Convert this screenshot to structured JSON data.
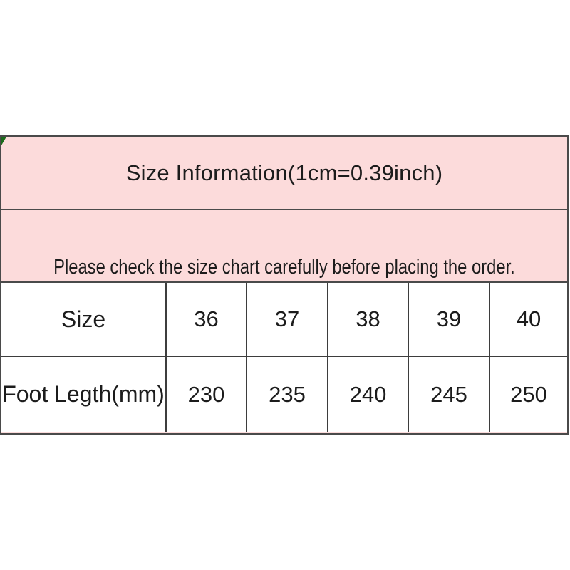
{
  "colors": {
    "panel_pink": "#fcdbdb",
    "border_dark": "#4a4a4a",
    "text_dark": "#1c1c1c",
    "corner_green": "#1b6b1b",
    "page_bg": "#ffffff",
    "table_bg": "#ffffff"
  },
  "header": {
    "title": "Size Information(1cm=0.39inch)"
  },
  "notice": {
    "text": "Please check the size chart carefully before placing the order."
  },
  "table": {
    "rows": [
      {
        "label": "Size",
        "values": [
          "36",
          "37",
          "38",
          "39",
          "40"
        ]
      },
      {
        "label": "Foot Legth(mm)",
        "values": [
          "230",
          "235",
          "240",
          "245",
          "250"
        ]
      }
    ]
  },
  "chart_data": {
    "type": "table",
    "title": "Size Information(1cm=0.39inch)",
    "annotation": "Please check the size chart carefully before placing the order.",
    "rows": [
      [
        "Size",
        "36",
        "37",
        "38",
        "39",
        "40"
      ],
      [
        "Foot Legth(mm)",
        "230",
        "235",
        "240",
        "245",
        "250"
      ]
    ],
    "sizes": [
      36,
      37,
      38,
      39,
      40
    ],
    "foot_length_mm": [
      230,
      235,
      240,
      245,
      250
    ]
  }
}
